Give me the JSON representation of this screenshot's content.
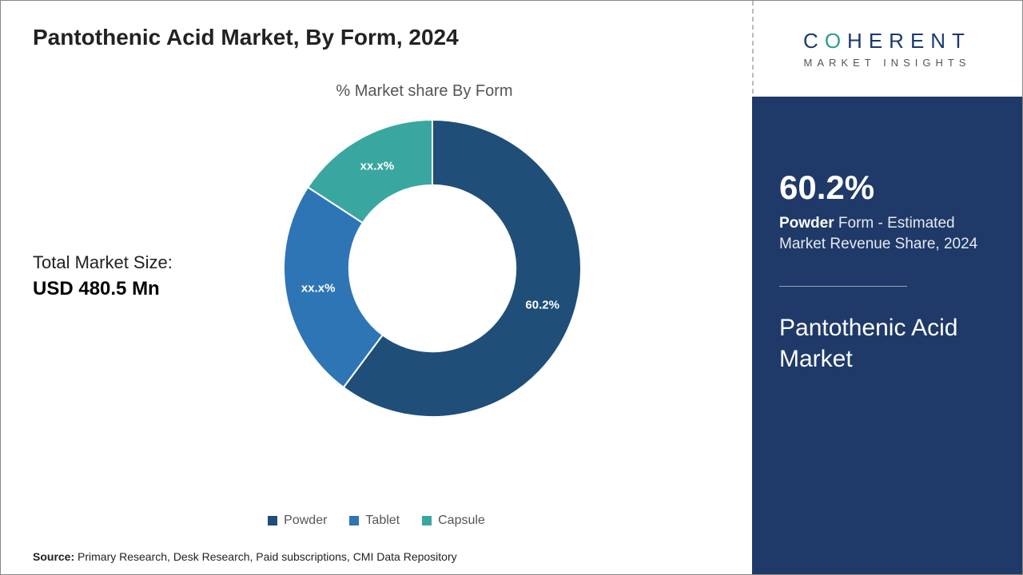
{
  "title": "Pantothenic Acid Market, By Form, 2024",
  "chart": {
    "type": "donut",
    "title": "% Market share By Form",
    "inner_radius_ratio": 0.56,
    "background_color": "#ffffff",
    "stroke_color": "#ffffff",
    "stroke_width": 2,
    "slices": [
      {
        "name": "Powder",
        "value": 60.2,
        "label": "60.2%",
        "color": "#1f4e79"
      },
      {
        "name": "Tablet",
        "value": 24.0,
        "label": "xx.x%",
        "color": "#2e75b6"
      },
      {
        "name": "Capsule",
        "value": 15.8,
        "label": "xx.x%",
        "color": "#3aa6a0"
      }
    ],
    "label_color": "#ffffff",
    "label_fontsize": 15
  },
  "market_size": {
    "label": "Total Market Size:",
    "value": "USD 480.5 Mn"
  },
  "legend": {
    "items": [
      {
        "label": "Powder",
        "color": "#1f4e79"
      },
      {
        "label": "Tablet",
        "color": "#2e75b6"
      },
      {
        "label": "Capsule",
        "color": "#3aa6a0"
      }
    ],
    "fontsize": 16,
    "text_color": "#555555"
  },
  "source": {
    "label": "Source:",
    "text": "Primary Research, Desk Research, Paid subscriptions, CMI Data Repository"
  },
  "logo": {
    "brand_pre": "C",
    "brand_accent": "O",
    "brand_post": "HERENT",
    "sub": "MARKET INSIGHTS",
    "text_color": "#1a3a6e",
    "accent_color": "#2a9d8f"
  },
  "side_panel": {
    "background_color": "#1f3a68",
    "stat_value": "60.2%",
    "stat_bold": "Powder",
    "stat_rest": " Form - Estimated Market Revenue Share, 2024",
    "title": "Pantothenic Acid Market"
  }
}
